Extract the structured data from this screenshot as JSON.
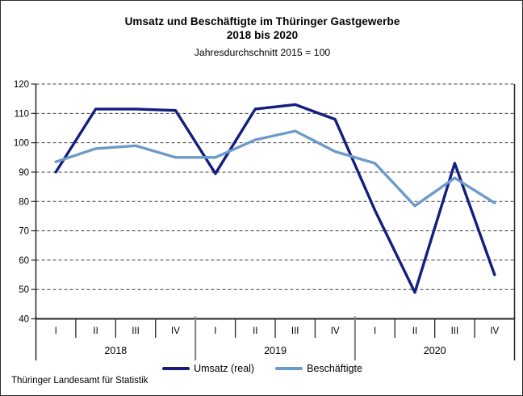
{
  "chart_data": {
    "type": "line",
    "title": "Umsatz und Beschäftigte im Thüringer Gastgewerbe",
    "title_line2": "2018 bis 2020",
    "subtitle": "Jahresdurchschnitt 2015 = 100",
    "ylim": [
      40,
      120
    ],
    "ytick_step": 10,
    "grid": true,
    "legend_position": "bottom",
    "years": [
      "2018",
      "2019",
      "2020"
    ],
    "quarter_labels": [
      "I",
      "II",
      "III",
      "IV"
    ],
    "categories": [
      "2018-I",
      "2018-II",
      "2018-III",
      "2018-IV",
      "2019-I",
      "2019-II",
      "2019-III",
      "2019-IV",
      "2020-I",
      "2020-II",
      "2020-III",
      "2020-IV"
    ],
    "series": [
      {
        "name": "Umsatz (real)",
        "color": "#141E7F",
        "values": [
          90,
          111.5,
          111.5,
          111,
          89.5,
          111.5,
          113,
          108,
          77,
          49,
          93,
          55
        ]
      },
      {
        "name": "Beschäftigte",
        "color": "#6D9BC9",
        "values": [
          93.5,
          98,
          99,
          95,
          95,
          101,
          104,
          97,
          93,
          78.5,
          88,
          79.5
        ]
      }
    ],
    "source": "Thüringer Landesamt für Statistik",
    "axis_color": "#262626",
    "grid_color": "#3F3F3F",
    "year_divider_color": "#808080"
  }
}
